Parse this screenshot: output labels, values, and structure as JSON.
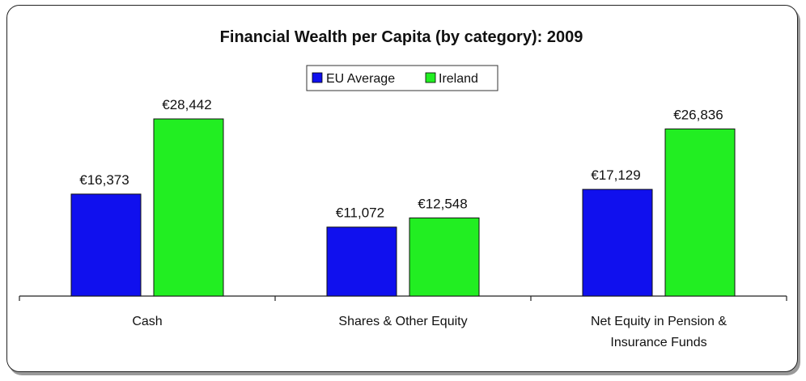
{
  "chart_data": {
    "type": "bar",
    "title": "Financial Wealth per Capita (by category):  2009",
    "xlabel": "",
    "ylabel": "",
    "categories": [
      [
        "Cash"
      ],
      [
        "Shares & Other Equity"
      ],
      [
        "Net Equity in Pension &",
        "Insurance Funds"
      ]
    ],
    "series": [
      {
        "name": "EU Average",
        "color": "#1010ee",
        "values": [
          16373,
          11072,
          17129
        ],
        "labels": [
          "€16,373",
          "€11,072",
          "€17,129"
        ]
      },
      {
        "name": "Ireland",
        "color": "#22ee22",
        "values": [
          28442,
          12548,
          26836
        ],
        "labels": [
          "€28,442",
          "€12,548",
          "€26,836"
        ]
      }
    ],
    "ylim": [
      0,
      32000
    ],
    "grid": false,
    "legend": "top-center"
  }
}
